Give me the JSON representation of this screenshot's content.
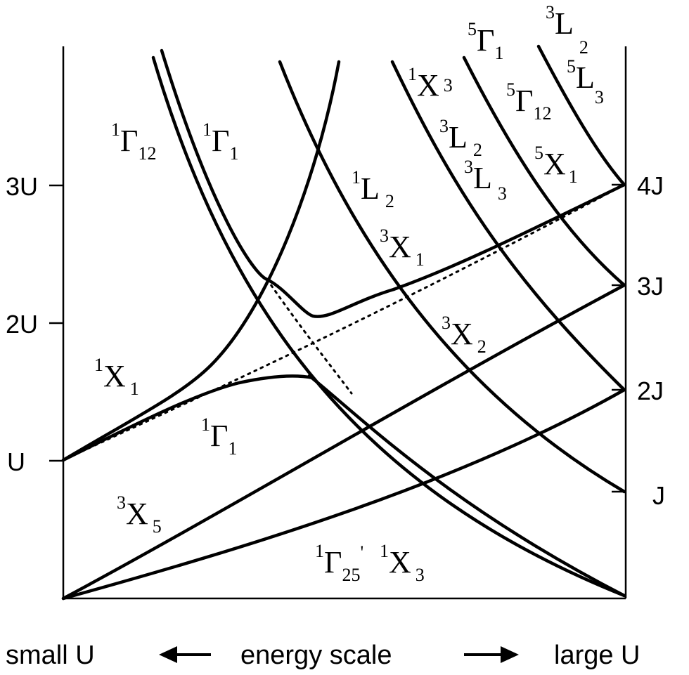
{
  "left_axis": {
    "ticks": [
      "3U",
      "2U",
      "U"
    ]
  },
  "right_axis": {
    "ticks": [
      "4J",
      "3J",
      "2J",
      "J"
    ]
  },
  "state_labels": [
    {
      "sup": "1",
      "base": "Γ",
      "sub": "12"
    },
    {
      "sup": "1",
      "base": "Γ",
      "sub": "1"
    },
    {
      "sup": "1",
      "base": "L",
      "sub": "2"
    },
    {
      "sup": "3",
      "base": "X",
      "sub": "1"
    },
    {
      "sup": "1",
      "base": "X",
      "sub": "3"
    },
    {
      "sup": "3",
      "base": "L",
      "sub": "2"
    },
    {
      "sup": "3",
      "base": "L",
      "sub": "3"
    },
    {
      "sup": "5",
      "base": "Γ",
      "sub": "1"
    },
    {
      "sup": "5",
      "base": "Γ",
      "sub": "12"
    },
    {
      "sup": "5",
      "base": "X",
      "sub": "1"
    },
    {
      "sup": "3",
      "base": "L",
      "sub": "2"
    },
    {
      "sup": "5",
      "base": "L",
      "sub": "3"
    },
    {
      "sup": "3",
      "base": "X",
      "sub": "2"
    },
    {
      "sup": "1",
      "base": "X",
      "sub": "1"
    },
    {
      "sup": "1",
      "base": "Γ",
      "sub": "1"
    },
    {
      "sup": "3",
      "base": "X",
      "sub": "5"
    },
    {
      "sup": "1",
      "base": "Γ",
      "sub": "25",
      "extra": "'"
    },
    {
      "sup": "1",
      "base": "X",
      "sub": "3"
    }
  ],
  "bottom": {
    "left": "small U",
    "middle": "energy scale",
    "right": "large U"
  },
  "colors": {
    "line": "#000000",
    "background": "#ffffff"
  }
}
